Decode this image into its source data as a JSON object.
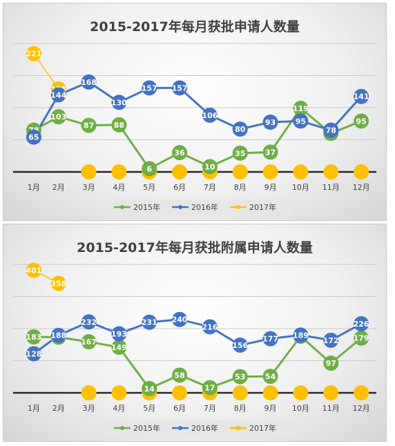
{
  "chart_data": [
    {
      "type": "line",
      "title": "2015-2017年每月获批申请人数量",
      "categories": [
        "1月",
        "2月",
        "3月",
        "4月",
        "5月",
        "6月",
        "7月",
        "8月",
        "9月",
        "10月",
        "11月",
        "12月"
      ],
      "series": [
        {
          "name": "2015年",
          "color": "#70ad47",
          "values": [
            78,
            103,
            87,
            88,
            6,
            36,
            10,
            35,
            37,
            119,
            72,
            95
          ]
        },
        {
          "name": "2016年",
          "color": "#4472c4",
          "values": [
            65,
            144,
            168,
            130,
            157,
            157,
            106,
            80,
            93,
            95,
            78,
            141
          ]
        },
        {
          "name": "2017年",
          "color": "#ffc000",
          "values": [
            221,
            155,
            null,
            null,
            null,
            null,
            null,
            null,
            null,
            null,
            null,
            null
          ]
        }
      ],
      "ylim": [
        0,
        240
      ],
      "grid": true,
      "legend": "bottom"
    },
    {
      "type": "line",
      "title": "2015-2017年每月获批附属申请人数量",
      "categories": [
        "1月",
        "2月",
        "3月",
        "4月",
        "5月",
        "6月",
        "7月",
        "8月",
        "9月",
        "10月",
        "11月",
        "12月"
      ],
      "series": [
        {
          "name": "2015年",
          "color": "#70ad47",
          "values": [
            183,
            182,
            167,
            149,
            14,
            58,
            17,
            53,
            54,
            185,
            97,
            179
          ]
        },
        {
          "name": "2016年",
          "color": "#4472c4",
          "values": [
            128,
            188,
            232,
            193,
            231,
            240,
            216,
            156,
            177,
            189,
            172,
            226
          ]
        },
        {
          "name": "2017年",
          "color": "#ffc000",
          "values": [
            401,
            358,
            null,
            null,
            null,
            null,
            null,
            null,
            null,
            null,
            null,
            null
          ]
        }
      ],
      "ylim": [
        0,
        420
      ],
      "grid": true,
      "legend": "bottom"
    }
  ]
}
